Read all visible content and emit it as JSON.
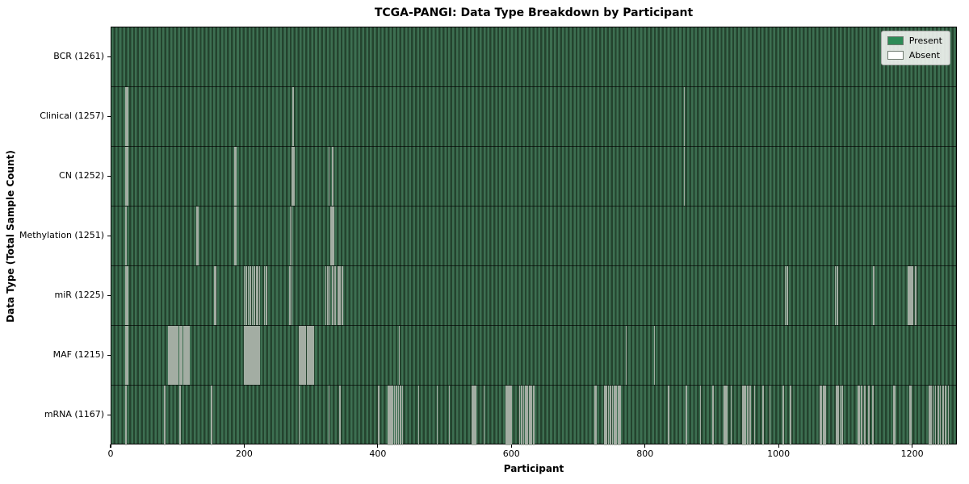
{
  "figure": {
    "title": "TCGA-PANGI: Data Type Breakdown by Participant",
    "xlabel": "Participant",
    "ylabel": "Data Type (Total Sample Count)"
  },
  "legend": {
    "position": "upper right",
    "items": [
      {
        "label": "Present",
        "color": "#2e8b57"
      },
      {
        "label": "Absent",
        "color": "#ffffff"
      }
    ]
  },
  "colors": {
    "present_fill": "#2e8b57",
    "present_stripe_light": "#3d6f51",
    "present_stripe_dark": "#24432e",
    "absent_line": "#a3ada3",
    "spine": "#000000",
    "background": "#ffffff"
  },
  "chart_data": {
    "type": "heatmap",
    "title": "TCGA-PANGI: Data Type Breakdown by Participant",
    "xlabel": "Participant",
    "ylabel": "Data Type (Total Sample Count)",
    "legend_entries": [
      "Present",
      "Absent"
    ],
    "legend_position": "upper right",
    "grid": false,
    "x_ticks": [
      0,
      200,
      400,
      600,
      800,
      1000,
      1200
    ],
    "x_range": [
      0,
      1267
    ],
    "total_participants": 1261,
    "categories": [
      "BCR (1261)",
      "Clinical (1257)",
      "CN (1252)",
      "Methylation (1251)",
      "miR (1225)",
      "MAF (1215)",
      "mRNA (1167)"
    ],
    "rows": [
      {
        "name": "BCR",
        "label": "BCR (1261)",
        "present_count": 1261,
        "absent_participants": []
      },
      {
        "name": "Clinical",
        "label": "Clinical (1257)",
        "present_count": 1257,
        "absent_participants": [
          21,
          23,
          271,
          857
        ]
      },
      {
        "name": "CN",
        "label": "CN (1252)",
        "present_count": 1252,
        "absent_participants": [
          21,
          23,
          184,
          186,
          270,
          272,
          325,
          330,
          857
        ]
      },
      {
        "name": "Methylation",
        "label": "Methylation (1251)",
        "present_count": 1251,
        "absent_participants": [
          21,
          127,
          129,
          184,
          186,
          267,
          269,
          328,
          330,
          332
        ]
      },
      {
        "name": "miR",
        "label": "miR (1225)",
        "present_count": 1225,
        "absent_participants": [
          21,
          23,
          153,
          155,
          198,
          201,
          204,
          207,
          210,
          213,
          216,
          218,
          221,
          228,
          231,
          266,
          269,
          320,
          323,
          326,
          330,
          334,
          338,
          340,
          342,
          345,
          1008,
          1011,
          1083,
          1086,
          1140,
          1192,
          1194,
          1196,
          1198,
          1203
        ]
      },
      {
        "name": "MAF",
        "label": "MAF (1215)",
        "present_count": 1215,
        "absent_participants": [
          20,
          22,
          24,
          85,
          87,
          89,
          91,
          93,
          95,
          97,
          99,
          101,
          103,
          105,
          107,
          109,
          111,
          113,
          115,
          198,
          200,
          202,
          204,
          206,
          208,
          210,
          212,
          214,
          216,
          218,
          220,
          280,
          282,
          284,
          286,
          288,
          290,
          292,
          294,
          296,
          298,
          300,
          302,
          430,
          770,
          812
        ]
      },
      {
        "name": "mRNA",
        "label": "mRNA (1167)",
        "present_count": 1167,
        "absent_participants": [
          21,
          79,
          102,
          149,
          280,
          325,
          341,
          399,
          413,
          415,
          417,
          420,
          423,
          426,
          429,
          432,
          435,
          459,
          487,
          505,
          539,
          541,
          543,
          545,
          557,
          590,
          592,
          594,
          596,
          598,
          610,
          613,
          616,
          619,
          622,
          625,
          628,
          631,
          723,
          725,
          738,
          740,
          743,
          746,
          749,
          752,
          755,
          758,
          761,
          833,
          860,
          881,
          900,
          917,
          919,
          921,
          927,
          944,
          946,
          948,
          952,
          955,
          962,
          975,
          985,
          1005,
          1016,
          1060,
          1062,
          1065,
          1068,
          1085,
          1087,
          1090,
          1093,
          1117,
          1119,
          1122,
          1127,
          1133,
          1139,
          1170,
          1172,
          1194,
          1196,
          1224,
          1226,
          1229,
          1233,
          1237,
          1240,
          1244,
          1248,
          1252
        ]
      }
    ]
  }
}
